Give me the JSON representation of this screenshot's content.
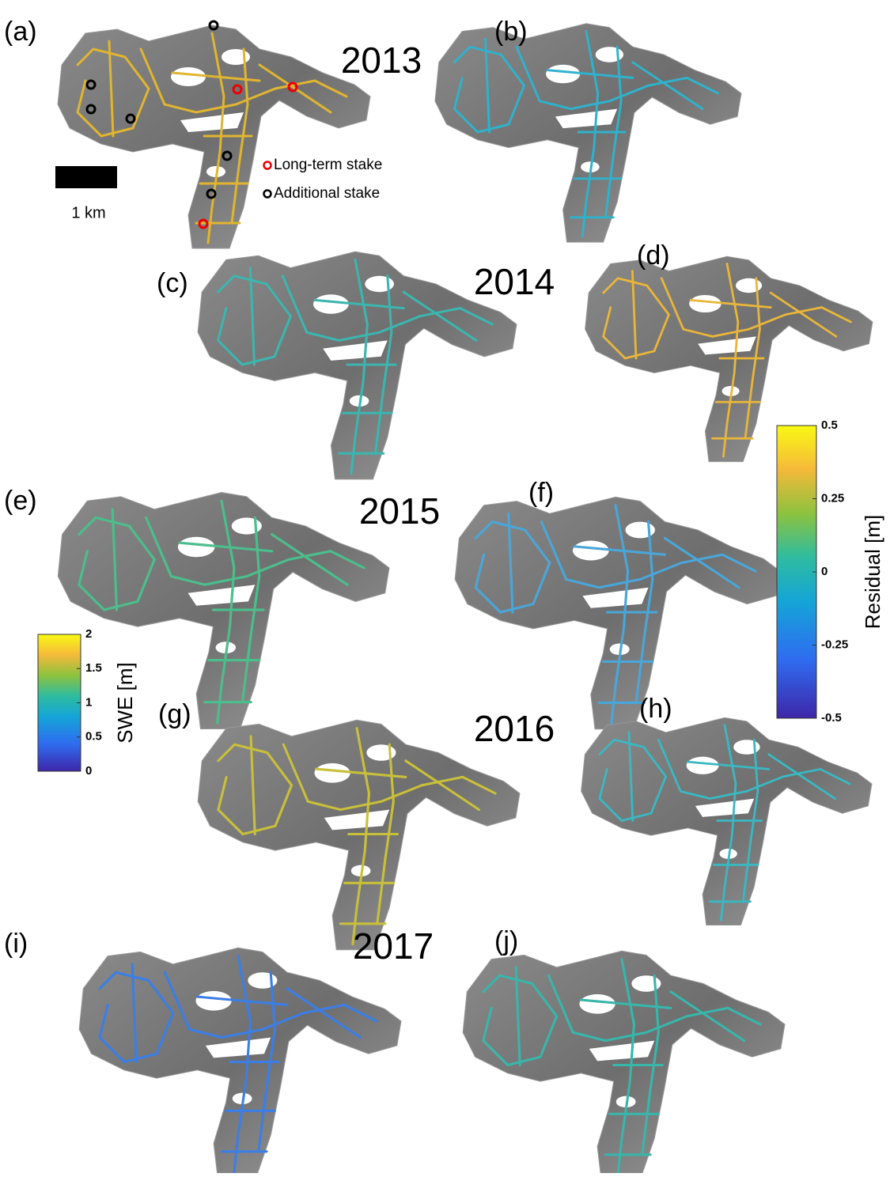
{
  "panels": [
    "(a)",
    "(b)",
    "(c)",
    "(d)",
    "(e)",
    "(f)",
    "(g)",
    "(h)",
    "(i)",
    "(j)"
  ],
  "years": [
    "2013",
    "2014",
    "2015",
    "2016",
    "2017"
  ],
  "legend": {
    "long_term": "Long-term stake",
    "additional": "Additional stake"
  },
  "scale_bar": "1 km",
  "swe_colorbar": {
    "title": "SWE [m]",
    "lim": [
      0,
      2
    ],
    "ticks": [
      0,
      0.5,
      1,
      1.5,
      2
    ]
  },
  "residual_colorbar": {
    "title": "Residual [m]",
    "lim": [
      -0.5,
      0.5
    ],
    "ticks": [
      -0.5,
      -0.25,
      0,
      0.25,
      0.5
    ]
  }
}
